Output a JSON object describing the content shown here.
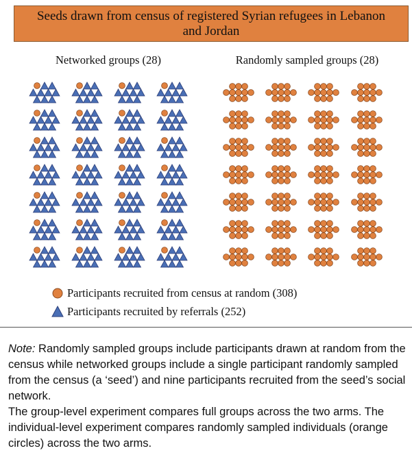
{
  "header": {
    "title": "Seeds drawn from census of registered Syrian refugees in Lebanon and Jordan"
  },
  "columns": [
    "Networked groups (28)",
    "Randomly sampled groups (28)"
  ],
  "legend": [
    "Participants recruited from census at random (308)",
    "Participants recruited by referrals (252)"
  ],
  "note": {
    "label": "Note:",
    "paragraphs": [
      "Randomly sampled groups include participants drawn at random from the census while networked groups include a single participant randomly sampled from the census (a ‘seed’) and nine participants recruited from the seed’s social network.",
      "The group-level experiment compares full groups across the two arms. The individual-level experiment compares randomly sampled individuals (orange circles) across the two arms."
    ]
  }
}
